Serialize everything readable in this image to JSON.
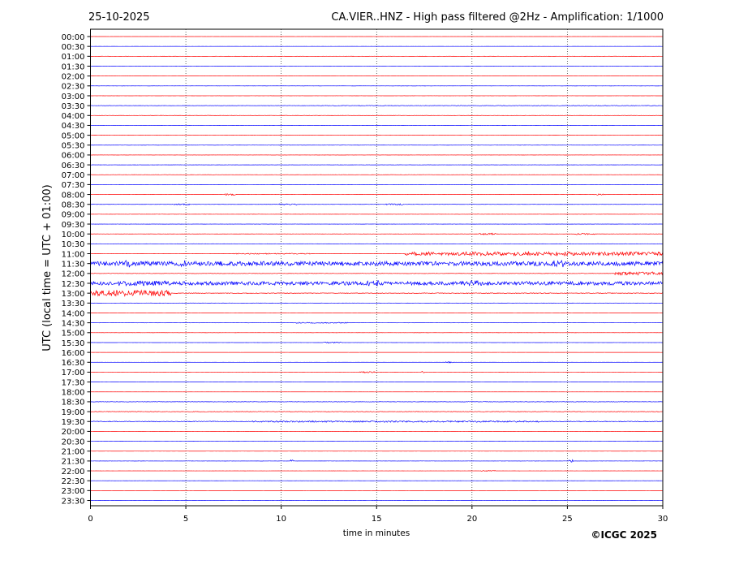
{
  "header": {
    "date": "25-10-2025",
    "title": "CA.VIER..HNZ - High pass filtered @2Hz - Amplification: 1/1000"
  },
  "footer": {
    "copyright": "©ICGC 2025"
  },
  "chart_data": {
    "type": "line",
    "title": "CA.VIER..HNZ - High pass filtered @2Hz - Amplification: 1/1000",
    "xlabel": "time in minutes",
    "ylabel": "UTC (local time = UTC + 01:00)",
    "xlim": [
      0,
      30
    ],
    "x_ticks": [
      "0",
      "5",
      "10",
      "15",
      "20",
      "25",
      "30"
    ],
    "row_labels": [
      "00:00",
      "00:30",
      "01:00",
      "01:30",
      "02:00",
      "02:30",
      "03:00",
      "03:30",
      "04:00",
      "04:30",
      "05:00",
      "05:30",
      "06:00",
      "06:30",
      "07:00",
      "07:30",
      "08:00",
      "08:30",
      "09:00",
      "09:30",
      "10:00",
      "10:30",
      "11:00",
      "11:30",
      "12:00",
      "12:30",
      "13:00",
      "13:30",
      "14:00",
      "14:30",
      "15:00",
      "15:30",
      "16:00",
      "16:30",
      "17:00",
      "17:30",
      "18:00",
      "18:30",
      "19:00",
      "19:30",
      "20:00",
      "20:30",
      "21:00",
      "21:30",
      "22:00",
      "22:30",
      "23:00",
      "23:30"
    ],
    "trace_colors": [
      "#ff0000",
      "#0000ff"
    ],
    "grid": "vertical dotted at 5-minute intervals",
    "trace_noise": [
      0.05,
      0.05,
      0.05,
      0.08,
      0.05,
      0.05,
      0.05,
      0.15,
      0.15,
      0.1,
      0.1,
      0.1,
      0.1,
      0.1,
      0.1,
      0.1,
      0.1,
      0.1,
      0.1,
      0.1,
      0.1,
      0.1,
      0.15,
      1.0,
      0.2,
      1.0,
      0.4,
      0.05,
      0.05,
      0.08,
      0.05,
      0.05,
      0.05,
      0.05,
      0.05,
      0.05,
      0.05,
      0.25,
      0.3,
      0.45,
      0.05,
      0.05,
      0.05,
      0.1,
      0.05,
      0.05,
      0.05,
      0.05
    ],
    "events": [
      {
        "row": 7,
        "start": 12,
        "end": 30,
        "amp": 0.3
      },
      {
        "row": 16,
        "start": 7.0,
        "end": 7.6,
        "amp": 1.0
      },
      {
        "row": 16,
        "start": 26.4,
        "end": 27.0,
        "amp": 0.8
      },
      {
        "row": 17,
        "start": 4.3,
        "end": 5.2,
        "amp": 0.8
      },
      {
        "row": 17,
        "start": 9.9,
        "end": 10.8,
        "amp": 0.8
      },
      {
        "row": 17,
        "start": 15.5,
        "end": 16.4,
        "amp": 0.8
      },
      {
        "row": 20,
        "start": 20.4,
        "end": 21.3,
        "amp": 1.0
      },
      {
        "row": 20,
        "start": 25.4,
        "end": 26.4,
        "amp": 0.8
      },
      {
        "row": 22,
        "start": 16.5,
        "end": 30,
        "amp": 2.3
      },
      {
        "row": 22,
        "start": 7.5,
        "end": 11.5,
        "amp": 0.6
      },
      {
        "row": 23,
        "start": 0,
        "end": 30,
        "amp": 2.6
      },
      {
        "row": 23,
        "start": 1.8,
        "end": 2.1,
        "amp": 5.0
      },
      {
        "row": 23,
        "start": 4.6,
        "end": 5.2,
        "amp": 4.0
      },
      {
        "row": 23,
        "start": 24.3,
        "end": 24.8,
        "amp": 4.5
      },
      {
        "row": 24,
        "start": 27.5,
        "end": 30,
        "amp": 2.0
      },
      {
        "row": 25,
        "start": 0,
        "end": 30,
        "amp": 2.2
      },
      {
        "row": 25,
        "start": 1.5,
        "end": 4.2,
        "amp": 3.0
      },
      {
        "row": 25,
        "start": 14.5,
        "end": 15.1,
        "amp": 3.5
      },
      {
        "row": 25,
        "start": 19.8,
        "end": 20.5,
        "amp": 3.5
      },
      {
        "row": 26,
        "start": 0,
        "end": 4.2,
        "amp": 3.5
      },
      {
        "row": 29,
        "start": 10.8,
        "end": 13.5,
        "amp": 0.6
      },
      {
        "row": 31,
        "start": 12.2,
        "end": 13.2,
        "amp": 0.8
      },
      {
        "row": 33,
        "start": 18.6,
        "end": 19.0,
        "amp": 0.8
      },
      {
        "row": 34,
        "start": 14.1,
        "end": 14.9,
        "amp": 0.8
      },
      {
        "row": 34,
        "start": 17.3,
        "end": 17.5,
        "amp": 1.2
      },
      {
        "row": 39,
        "start": 8.5,
        "end": 23.5,
        "amp": 0.9
      },
      {
        "row": 43,
        "start": 10.5,
        "end": 10.6,
        "amp": 1.5
      },
      {
        "row": 43,
        "start": 25.1,
        "end": 25.3,
        "amp": 1.5
      },
      {
        "row": 44,
        "start": 20.5,
        "end": 21.2,
        "amp": 0.6
      }
    ]
  }
}
